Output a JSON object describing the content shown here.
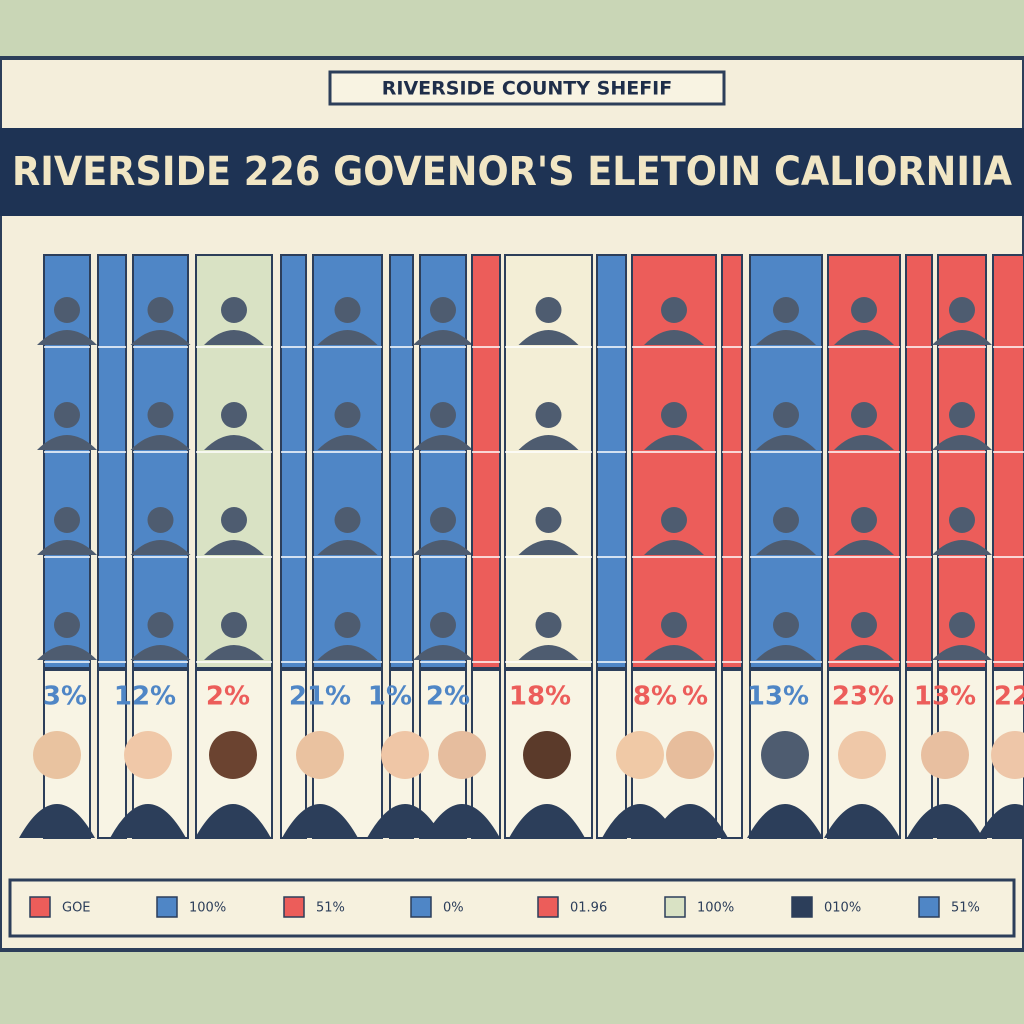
{
  "header": {
    "sign": "RIVERSIDE COUNTY SHEFIF",
    "title": "RIVERSIDE 226 GOVENOR'S ELETOIN CALIORNIIA"
  },
  "columns": {
    "percent_labels": [
      "3%",
      "12%",
      "2%",
      "21%",
      "1%",
      "2%",
      "18%",
      "8%",
      "%",
      "13%",
      "23%",
      "13%",
      "22"
    ]
  },
  "legend": {
    "items": [
      "GOE",
      "100%",
      "51%",
      "0%",
      "01.96",
      "100%",
      "010%",
      "51%"
    ]
  }
}
